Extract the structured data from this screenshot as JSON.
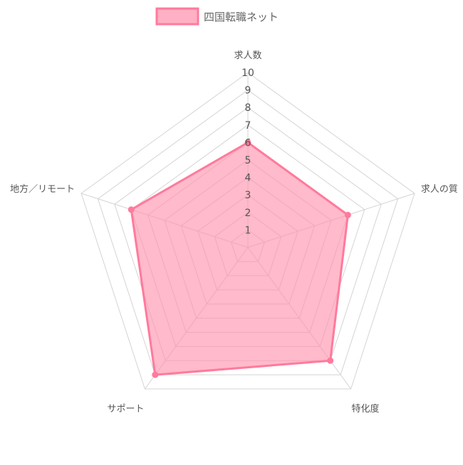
{
  "chart_data": {
    "type": "radar",
    "axes": [
      "求人数",
      "求人の質",
      "特化度",
      "サポート",
      "地方／リモート"
    ],
    "series": [
      {
        "name": "四国転職ネット",
        "values": [
          6,
          6,
          8,
          9,
          7
        ],
        "fill": "#ff8fab",
        "stroke": "#ff7a9c"
      }
    ],
    "rlim": [
      0,
      10
    ],
    "ticks": [
      "1",
      "2",
      "3",
      "4",
      "5",
      "6",
      "7",
      "8",
      "9",
      "10"
    ],
    "legend_position": "top",
    "grid": true
  }
}
